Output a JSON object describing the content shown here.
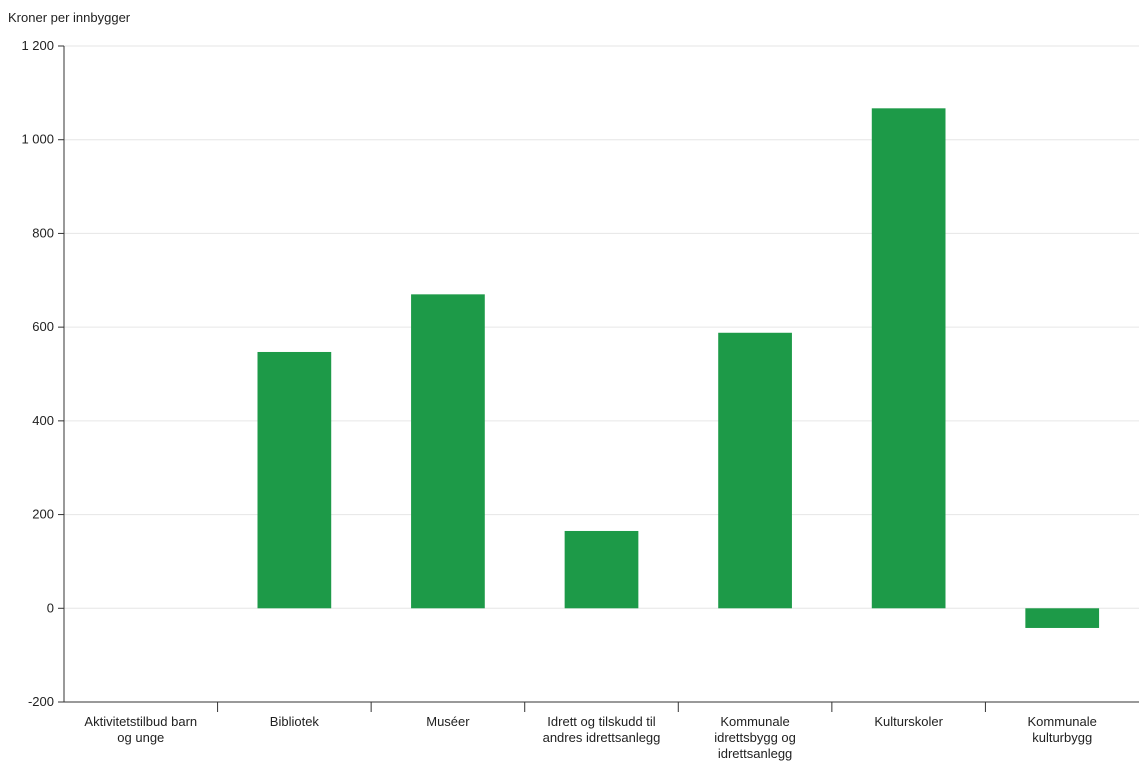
{
  "chart_data": {
    "type": "bar",
    "ylabel": "Kroner per innbygger",
    "ylim": [
      -200,
      1200
    ],
    "yticks": [
      {
        "value": -200,
        "label": "-200"
      },
      {
        "value": 0,
        "label": "0"
      },
      {
        "value": 200,
        "label": "200"
      },
      {
        "value": 400,
        "label": "400"
      },
      {
        "value": 600,
        "label": "600"
      },
      {
        "value": 800,
        "label": "800"
      },
      {
        "value": 1000,
        "label": "1 000"
      },
      {
        "value": 1200,
        "label": "1 200"
      }
    ],
    "grid": true,
    "legend": "none",
    "bar_color": "#1d9a48",
    "categories": [
      {
        "label": [
          "Aktivitetstilbud barn",
          "og unge"
        ],
        "value": 0
      },
      {
        "label": [
          "Bibliotek"
        ],
        "value": 547
      },
      {
        "label": [
          "Muséer"
        ],
        "value": 670
      },
      {
        "label": [
          "Idrett og tilskudd til",
          "andres idrettsanlegg"
        ],
        "value": 165
      },
      {
        "label": [
          "Kommunale",
          "idrettsbygg og",
          "idrettsanlegg"
        ],
        "value": 588
      },
      {
        "label": [
          "Kulturskoler"
        ],
        "value": 1067
      },
      {
        "label": [
          "Kommunale",
          "kulturbygg"
        ],
        "value": -42
      }
    ]
  }
}
